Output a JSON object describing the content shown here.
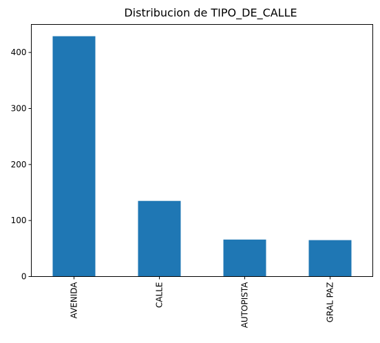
{
  "chart_data": {
    "type": "bar",
    "title": "Distribucion de TIPO_DE_CALLE",
    "xlabel": "",
    "ylabel": "",
    "categories": [
      "AVENIDA",
      "CALLE",
      "AUTOPISTA",
      "GRAL PAZ"
    ],
    "values": [
      429,
      135,
      66,
      65
    ],
    "ylim": [
      0,
      450
    ],
    "yticks": [
      0,
      100,
      200,
      300,
      400
    ],
    "bar_color": "#1f77b4",
    "grid": false,
    "legend": "none"
  }
}
